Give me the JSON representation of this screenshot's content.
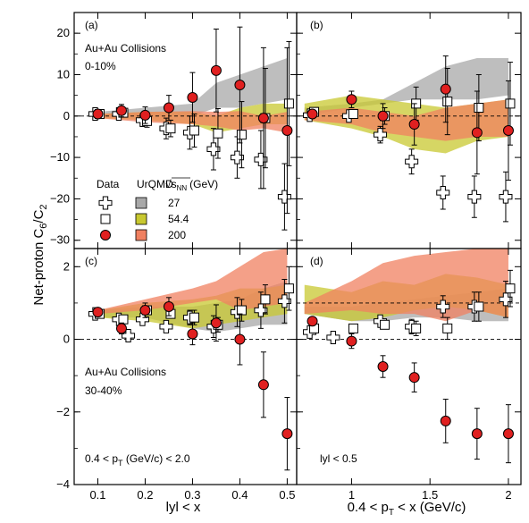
{
  "figure": {
    "ylabel_main": "Net-proton C",
    "ylabel_sub1": "6",
    "ylabel_mid": "/C",
    "ylabel_sub2": "2",
    "xlabel_left": "lyl < x",
    "xlabel_right_a": "0.4 < p",
    "xlabel_right_sub": "T",
    "xlabel_right_b": " < x (GeV/c)"
  },
  "legend": {
    "col_data": "Data",
    "col_model": "UrQMD",
    "col_energy": "√s",
    "col_energy_sub": "NN",
    "col_energy_unit": "(GeV)",
    "rows": [
      {
        "energy": "27",
        "color": "#a8a8a8",
        "marker": "cross"
      },
      {
        "energy": "54.4",
        "color": "#c8c830",
        "marker": "square"
      },
      {
        "energy": "200",
        "color": "#f08060",
        "marker": "circle"
      }
    ]
  },
  "colors": {
    "band27": "#a8a8a8",
    "band54": "#c8c830",
    "band200": "#f08060",
    "circle": "#e02020"
  },
  "chart_data": [
    {
      "panel": "(a)",
      "type": "scatter",
      "centrality": "0-10%",
      "title_line1": "Au+Au Collisions",
      "title_line2": "0-10%",
      "xlim": [
        0.05,
        0.52
      ],
      "ylim": [
        -32,
        25
      ],
      "xticks": [
        0.1,
        0.2,
        0.3,
        0.4,
        0.5
      ],
      "xticklabels": [],
      "yticks": [
        20,
        10,
        0,
        -10,
        -20,
        -30
      ],
      "yticklabels": [
        "20",
        "10",
        "0",
        "−10",
        "−20",
        "−30"
      ],
      "circles": [
        {
          "x": 0.1,
          "y": 0.5,
          "err": 1
        },
        {
          "x": 0.15,
          "y": 1.3,
          "err": 1.5
        },
        {
          "x": 0.2,
          "y": 0.2,
          "err": 2
        },
        {
          "x": 0.25,
          "y": 2,
          "err": 3
        },
        {
          "x": 0.3,
          "y": 4.5,
          "err": 6
        },
        {
          "x": 0.35,
          "y": 11,
          "err": 10
        },
        {
          "x": 0.4,
          "y": 7.5,
          "err": 14
        },
        {
          "x": 0.45,
          "y": -0.5,
          "err": 17
        },
        {
          "x": 0.5,
          "y": -3.5,
          "err": 20
        }
      ],
      "squares": [
        {
          "x": 0.1,
          "y": 0.5,
          "err": 0.5
        },
        {
          "x": 0.15,
          "y": 0.8,
          "err": 0.8
        },
        {
          "x": 0.2,
          "y": -1.2,
          "err": 1.5
        },
        {
          "x": 0.25,
          "y": -3,
          "err": 2
        },
        {
          "x": 0.3,
          "y": -3.5,
          "err": 4
        },
        {
          "x": 0.35,
          "y": -4.2,
          "err": 6
        },
        {
          "x": 0.4,
          "y": -4.5,
          "err": 8
        },
        {
          "x": 0.45,
          "y": -0.5,
          "err": 12
        },
        {
          "x": 0.5,
          "y": 3,
          "err": 15
        }
      ],
      "crosses": [
        {
          "x": 0.1,
          "y": 0.5,
          "err": 0.5
        },
        {
          "x": 0.15,
          "y": 0.5,
          "err": 0.7
        },
        {
          "x": 0.2,
          "y": -1,
          "err": 1.5
        },
        {
          "x": 0.25,
          "y": -3,
          "err": 2.5
        },
        {
          "x": 0.3,
          "y": -4,
          "err": 4
        },
        {
          "x": 0.35,
          "y": -8,
          "err": 5
        },
        {
          "x": 0.4,
          "y": -10,
          "err": 5
        },
        {
          "x": 0.45,
          "y": -10.5,
          "err": 7
        },
        {
          "x": 0.5,
          "y": -19.5,
          "err": 8
        }
      ],
      "bands": [
        {
          "name": "27",
          "x": [
            0.1,
            0.2,
            0.3,
            0.35,
            0.4,
            0.45,
            0.5
          ],
          "lo": [
            0,
            0,
            0,
            2,
            2,
            3,
            4
          ],
          "hi": [
            1,
            2,
            3,
            8,
            10,
            12,
            14
          ]
        },
        {
          "name": "54.4",
          "x": [
            0.1,
            0.2,
            0.3,
            0.35,
            0.4,
            0.45,
            0.5
          ],
          "lo": [
            -0.5,
            -1,
            -2,
            -4,
            -3,
            -2,
            -2
          ],
          "hi": [
            0.5,
            1,
            1,
            0,
            2,
            3,
            3
          ]
        },
        {
          "name": "200",
          "x": [
            0.1,
            0.2,
            0.3,
            0.35,
            0.4,
            0.45,
            0.5
          ],
          "lo": [
            -0.5,
            -1.5,
            -2,
            -2.5,
            -3.5,
            -3,
            -4
          ],
          "hi": [
            0.5,
            1,
            1.2,
            1,
            1.2,
            0,
            1
          ]
        }
      ]
    },
    {
      "panel": "(b)",
      "type": "scatter",
      "centrality": "0-10%",
      "xlim": [
        0.65,
        2.08
      ],
      "ylim": [
        -32,
        25
      ],
      "xticks": [
        1,
        1.5,
        2
      ],
      "xticklabels": [],
      "yticks": [
        20,
        10,
        0,
        -10,
        -20,
        -30
      ],
      "yticklabels": [],
      "circles": [
        {
          "x": 0.75,
          "y": 0.5,
          "err": 1
        },
        {
          "x": 1,
          "y": 4,
          "err": 2
        },
        {
          "x": 1.2,
          "y": 0,
          "err": 3
        },
        {
          "x": 1.4,
          "y": -2,
          "err": 5
        },
        {
          "x": 1.6,
          "y": 6.5,
          "err": 8
        },
        {
          "x": 1.8,
          "y": -4,
          "err": 10
        },
        {
          "x": 2,
          "y": -3.5,
          "err": 12
        }
      ],
      "squares": [
        {
          "x": 0.75,
          "y": 1,
          "err": 0.5
        },
        {
          "x": 1,
          "y": 0.5,
          "err": 1
        },
        {
          "x": 1.2,
          "y": 0,
          "err": 2
        },
        {
          "x": 1.4,
          "y": 3,
          "err": 4
        },
        {
          "x": 1.6,
          "y": 3.5,
          "err": 8
        },
        {
          "x": 1.8,
          "y": 2,
          "err": 8
        },
        {
          "x": 2,
          "y": 3,
          "err": 10
        }
      ],
      "crosses": [
        {
          "x": 0.75,
          "y": 0.2,
          "err": 0.5
        },
        {
          "x": 1,
          "y": 0,
          "err": 1
        },
        {
          "x": 1.2,
          "y": -4.5,
          "err": 2
        },
        {
          "x": 1.4,
          "y": -11,
          "err": 3
        },
        {
          "x": 1.6,
          "y": -18.5,
          "err": 4
        },
        {
          "x": 1.8,
          "y": -19.5,
          "err": 5
        },
        {
          "x": 2,
          "y": -19.5,
          "err": 6
        }
      ],
      "bands": [
        {
          "name": "27",
          "x": [
            0.7,
            1,
            1.2,
            1.4,
            1.6,
            1.8,
            2
          ],
          "lo": [
            0,
            2,
            3,
            4,
            4,
            4,
            5
          ],
          "hi": [
            2,
            3,
            4,
            8,
            12,
            14,
            14
          ]
        },
        {
          "name": "54.4",
          "x": [
            0.7,
            1,
            1.2,
            1.4,
            1.6,
            1.8,
            2
          ],
          "lo": [
            -1,
            -3,
            -5,
            -8,
            -9,
            -6,
            -5
          ],
          "hi": [
            3,
            5,
            4,
            3,
            2,
            3,
            4
          ]
        },
        {
          "name": "200",
          "x": [
            0.7,
            1,
            1.2,
            1.4,
            1.6,
            1.8,
            2
          ],
          "lo": [
            -1,
            -2,
            -4,
            -5,
            -6,
            -5,
            -5
          ],
          "hi": [
            1,
            2,
            1,
            0,
            2,
            3,
            4
          ]
        }
      ]
    },
    {
      "panel": "(c)",
      "type": "scatter",
      "centrality": "30-40%",
      "title_line1": "Au+Au Collisions",
      "title_line2": "30-40%",
      "cut_label": "0.4 < p",
      "cut_sub": "T",
      "cut_label_b": " (GeV/c) < 2.0",
      "xlim": [
        0.05,
        0.52
      ],
      "ylim": [
        -4,
        2.5
      ],
      "xticks": [
        0.1,
        0.2,
        0.3,
        0.4,
        0.5
      ],
      "xticklabels": [
        "0.1",
        "0.2",
        "0.3",
        "0.4",
        "0.5"
      ],
      "yticks": [
        2,
        0,
        -2,
        -4
      ],
      "yticklabels": [
        "2",
        "0",
        "−2",
        "−4"
      ],
      "circles": [
        {
          "x": 0.1,
          "y": 0.75,
          "err": 0.1
        },
        {
          "x": 0.15,
          "y": 0.3,
          "err": 0.15
        },
        {
          "x": 0.2,
          "y": 0.8,
          "err": 0.2
        },
        {
          "x": 0.25,
          "y": 0.9,
          "err": 0.25
        },
        {
          "x": 0.3,
          "y": 0.15,
          "err": 0.3
        },
        {
          "x": 0.35,
          "y": 0.45,
          "err": 0.5
        },
        {
          "x": 0.4,
          "y": 0,
          "err": 0.7
        },
        {
          "x": 0.45,
          "y": -1.25,
          "err": 0.9
        },
        {
          "x": 0.5,
          "y": -2.6,
          "err": 1.0
        }
      ],
      "squares": [
        {
          "x": 0.1,
          "y": 0.7,
          "err": 0.1
        },
        {
          "x": 0.15,
          "y": 0.55,
          "err": 0.1
        },
        {
          "x": 0.2,
          "y": 0.8,
          "err": 0.1
        },
        {
          "x": 0.25,
          "y": 0.7,
          "err": 0.1
        },
        {
          "x": 0.3,
          "y": 0.6,
          "err": 0.2
        },
        {
          "x": 0.35,
          "y": 0.4,
          "err": 0.2
        },
        {
          "x": 0.4,
          "y": 0.8,
          "err": 0.3
        },
        {
          "x": 0.45,
          "y": 1.1,
          "err": 0.4
        },
        {
          "x": 0.5,
          "y": 1.4,
          "err": 0.6
        }
      ],
      "crosses": [
        {
          "x": 0.1,
          "y": 0.7,
          "err": 0.1
        },
        {
          "x": 0.15,
          "y": 0.55,
          "err": 0.1
        },
        {
          "x": 0.17,
          "y": 0.1,
          "err": 0.1
        },
        {
          "x": 0.2,
          "y": 0.55,
          "err": 0.15
        },
        {
          "x": 0.25,
          "y": 0.35,
          "err": 0.15
        },
        {
          "x": 0.3,
          "y": 0.6,
          "err": 0.2
        },
        {
          "x": 0.35,
          "y": 0.35,
          "err": 0.3
        },
        {
          "x": 0.4,
          "y": 0.75,
          "err": 0.4
        },
        {
          "x": 0.45,
          "y": 0.8,
          "err": 0.5
        },
        {
          "x": 0.5,
          "y": 1.05,
          "err": 0.6
        }
      ],
      "bands": [
        {
          "name": "27",
          "x": [
            0.1,
            0.2,
            0.3,
            0.35,
            0.4,
            0.45,
            0.5
          ],
          "lo": [
            0.6,
            0.6,
            0.3,
            0.2,
            0.3,
            0.4,
            0.4
          ],
          "hi": [
            0.8,
            0.9,
            0.9,
            1.0,
            1.1,
            1.4,
            1.6
          ]
        },
        {
          "name": "54.4",
          "x": [
            0.1,
            0.2,
            0.3,
            0.35,
            0.4,
            0.45,
            0.5
          ],
          "lo": [
            0.6,
            0.5,
            0.3,
            0.4,
            0.5,
            0.6,
            0.7
          ],
          "hi": [
            0.8,
            1.0,
            1.1,
            1.2,
            1.4,
            1.4,
            1.5
          ]
        },
        {
          "name": "200",
          "x": [
            0.1,
            0.2,
            0.3,
            0.35,
            0.4,
            0.45,
            0.5
          ],
          "lo": [
            0.7,
            0.8,
            1.0,
            1.1,
            0.8,
            0.9,
            1.0
          ],
          "hi": [
            0.8,
            1.1,
            1.4,
            1.6,
            2.0,
            2.4,
            2.5
          ]
        }
      ]
    },
    {
      "panel": "(d)",
      "type": "scatter",
      "centrality": "30-40%",
      "cut_label": "lyl < 0.5",
      "xlim": [
        0.65,
        2.08
      ],
      "ylim": [
        -4,
        2.5
      ],
      "xticks": [
        1,
        1.5,
        2
      ],
      "xticklabels": [
        "1",
        "1.5",
        "2"
      ],
      "yticks": [
        2,
        0,
        -2,
        -4
      ],
      "yticklabels": [],
      "circles": [
        {
          "x": 0.75,
          "y": 0.5,
          "err": 0.1
        },
        {
          "x": 1,
          "y": -0.05,
          "err": 0.2
        },
        {
          "x": 1.2,
          "y": -0.75,
          "err": 0.3
        },
        {
          "x": 1.4,
          "y": -1.05,
          "err": 0.4
        },
        {
          "x": 1.6,
          "y": -2.25,
          "err": 0.6
        },
        {
          "x": 1.8,
          "y": -2.6,
          "err": 0.7
        },
        {
          "x": 2,
          "y": -2.6,
          "err": 0.8
        }
      ],
      "squares": [
        {
          "x": 0.75,
          "y": 0.3,
          "err": 0.1
        },
        {
          "x": 1,
          "y": 0.3,
          "err": 0.1
        },
        {
          "x": 1.2,
          "y": 0.4,
          "err": 0.1
        },
        {
          "x": 1.4,
          "y": 0.3,
          "err": 0.2
        },
        {
          "x": 1.6,
          "y": 0.3,
          "err": 0.3
        },
        {
          "x": 1.8,
          "y": 0.9,
          "err": 0.4
        },
        {
          "x": 2,
          "y": 1.4,
          "err": 0.5
        }
      ],
      "crosses": [
        {
          "x": 0.75,
          "y": 0.2,
          "err": 0.1
        },
        {
          "x": 0.9,
          "y": 0.05,
          "err": 0.1
        },
        {
          "x": 1.2,
          "y": 0.5,
          "err": 0.15
        },
        {
          "x": 1.4,
          "y": 0.35,
          "err": 0.2
        },
        {
          "x": 1.6,
          "y": 0.9,
          "err": 0.3
        },
        {
          "x": 1.8,
          "y": 0.9,
          "err": 0.4
        },
        {
          "x": 2,
          "y": 1.1,
          "err": 0.5
        }
      ],
      "bands": [
        {
          "name": "27",
          "x": [
            0.7,
            1,
            1.2,
            1.4,
            1.6,
            1.8,
            2
          ],
          "lo": [
            0.7,
            0.5,
            0.5,
            0.6,
            0.6,
            0.5,
            0.5
          ],
          "hi": [
            0.9,
            0.9,
            1.0,
            1.1,
            1.2,
            1.3,
            1.4
          ]
        },
        {
          "name": "54.4",
          "x": [
            0.7,
            1,
            1.2,
            1.4,
            1.6,
            1.8,
            2
          ],
          "lo": [
            0.7,
            0.5,
            0.6,
            0.8,
            0.9,
            0.8,
            0.6
          ],
          "hi": [
            1.5,
            1.3,
            1.6,
            1.5,
            1.8,
            1.7,
            1.5
          ]
        },
        {
          "name": "200",
          "x": [
            0.7,
            1,
            1.2,
            1.4,
            1.6,
            1.8,
            2
          ],
          "lo": [
            0.7,
            0.8,
            0.7,
            0.7,
            0.5,
            0.8,
            0.6
          ],
          "hi": [
            1.0,
            1.6,
            2.1,
            2.3,
            2.4,
            2.5,
            2.5
          ]
        }
      ]
    }
  ]
}
